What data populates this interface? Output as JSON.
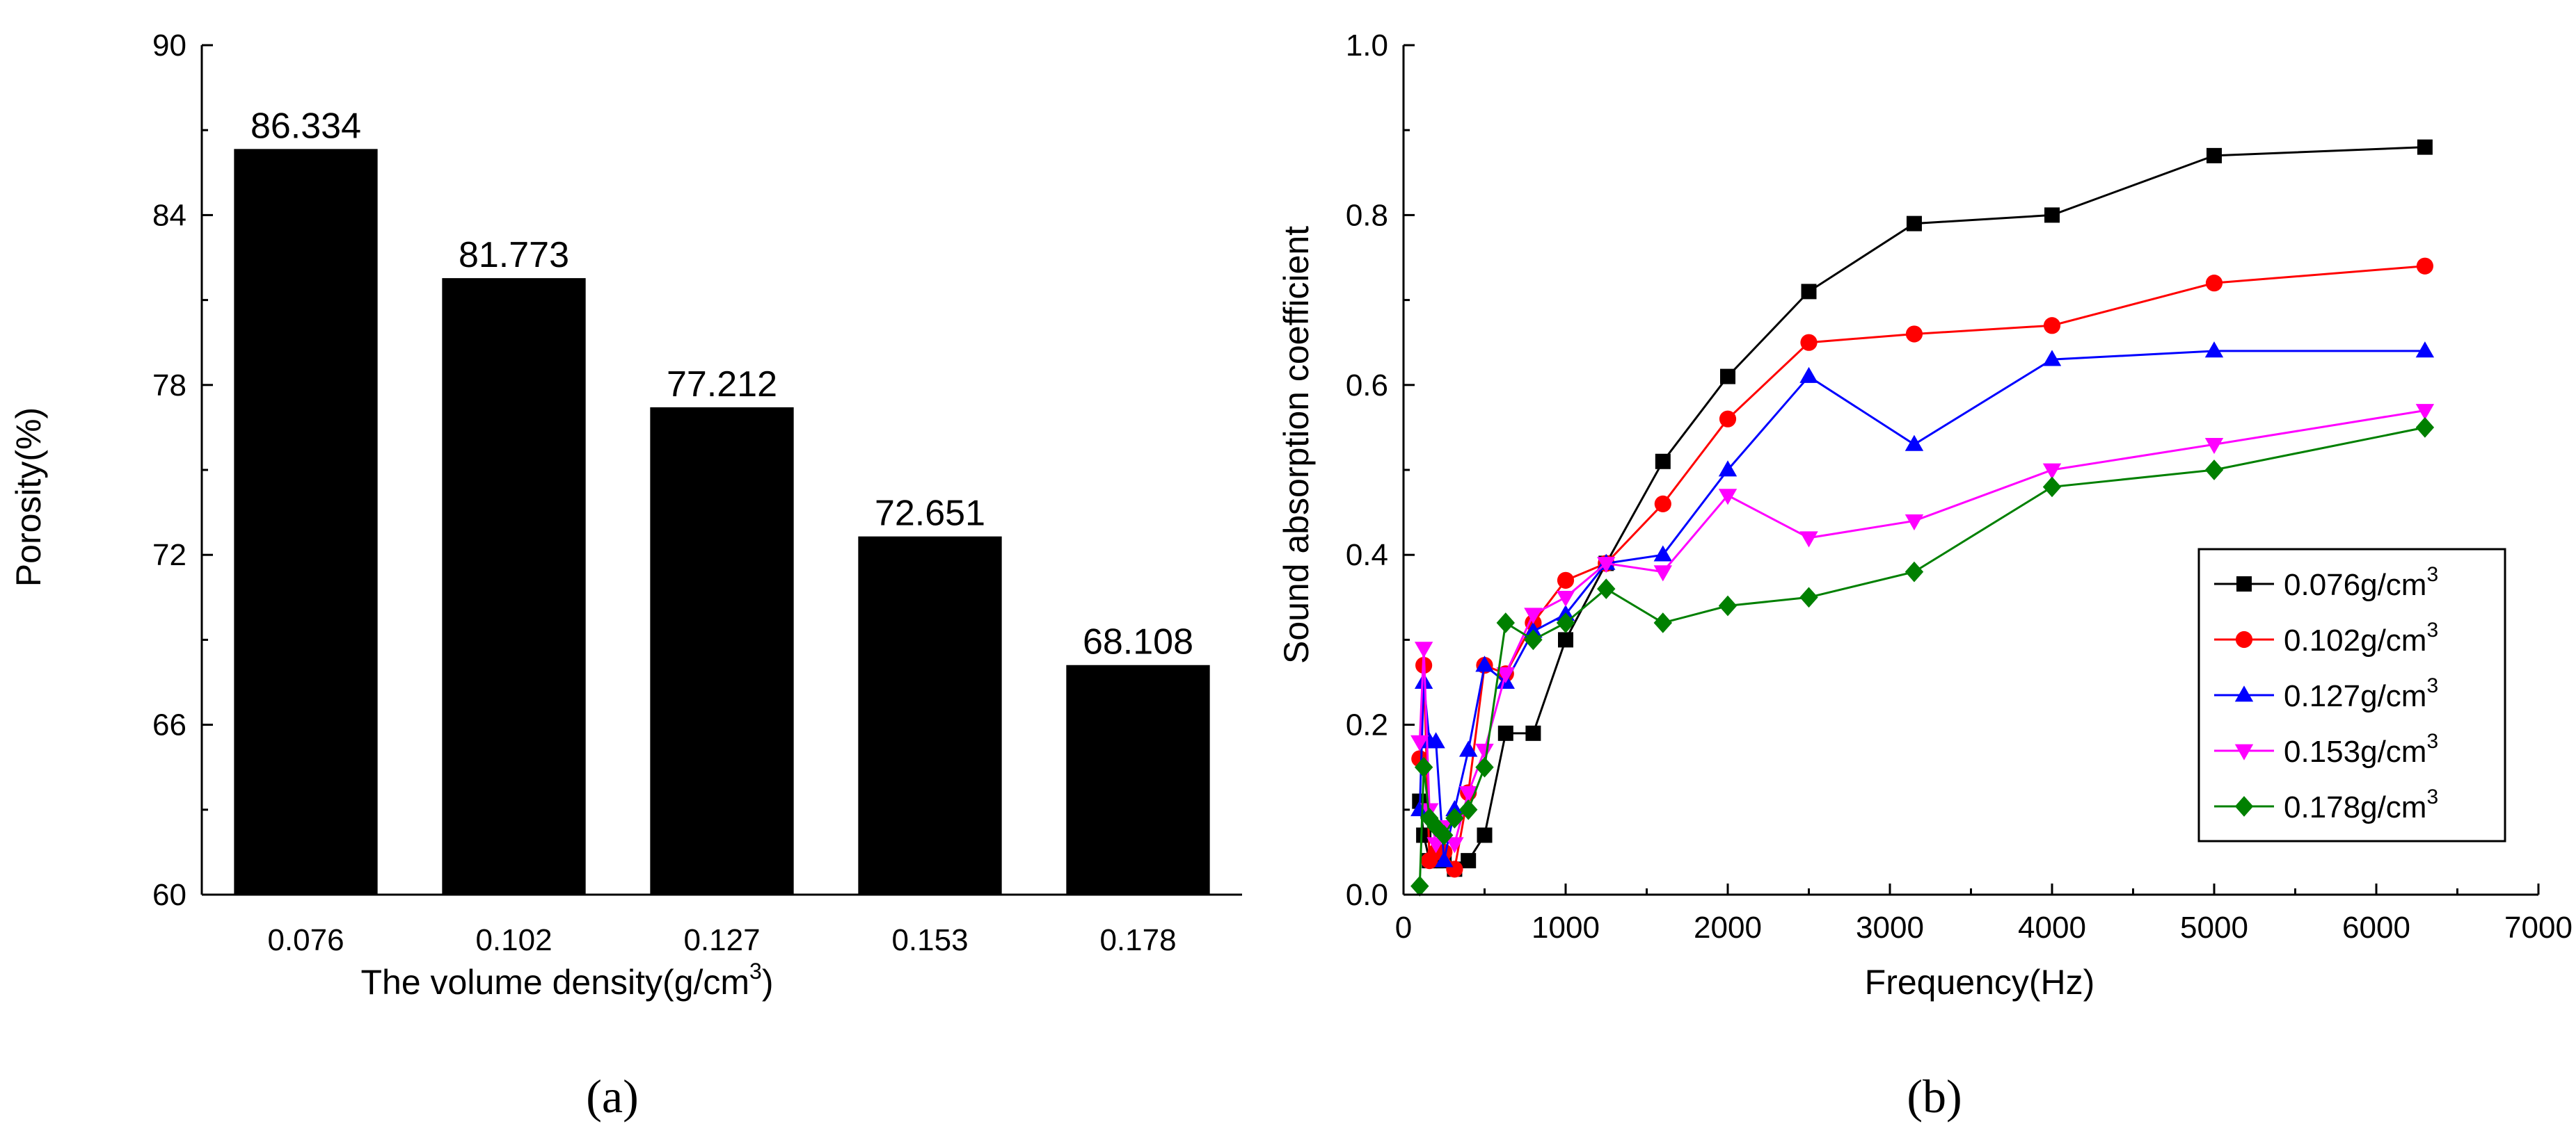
{
  "chart_data": [
    {
      "type": "bar",
      "panel_label": "(a)",
      "categories": [
        "0.076",
        "0.102",
        "0.127",
        "0.153",
        "0.178"
      ],
      "values": [
        86.334,
        81.773,
        77.212,
        72.651,
        68.108
      ],
      "data_labels": [
        "86.334",
        "81.773",
        "77.212",
        "72.651",
        "68.108"
      ],
      "xlabel": "The volume density(g/cm",
      "xlabel_sup": "3",
      "xlabel_end": ")",
      "ylabel": "Porosity(%)",
      "ylim": [
        60,
        90
      ],
      "yticks": [
        60,
        66,
        72,
        78,
        84,
        90
      ],
      "bar_color": "#000000"
    },
    {
      "type": "line",
      "panel_label": "(b)",
      "xlabel": "Frequency(Hz)",
      "ylabel": "Sound absorption coefficient",
      "xlim": [
        0,
        7000
      ],
      "ylim": [
        0.0,
        1.0
      ],
      "xticks": [
        0,
        1000,
        2000,
        3000,
        4000,
        5000,
        6000,
        7000
      ],
      "yticks": [
        0.0,
        0.2,
        0.4,
        0.6,
        0.8,
        1.0
      ],
      "x": [
        100,
        125,
        160,
        200,
        250,
        315,
        400,
        500,
        630,
        800,
        1000,
        1250,
        1600,
        2000,
        2500,
        3150,
        4000,
        5000,
        6300
      ],
      "legend_position": "center-right",
      "series": [
        {
          "name": "0.076g/cm",
          "sup": "3",
          "color": "#000000",
          "marker": "square",
          "values": [
            0.11,
            0.07,
            0.04,
            0.04,
            0.04,
            0.03,
            0.04,
            0.07,
            0.19,
            0.19,
            0.3,
            0.39,
            0.51,
            0.61,
            0.71,
            0.79,
            0.8,
            0.87,
            0.88
          ]
        },
        {
          "name": "0.102g/cm",
          "sup": "3",
          "color": "#ff0000",
          "marker": "circle",
          "values": [
            0.16,
            0.27,
            0.04,
            0.05,
            0.05,
            0.03,
            0.12,
            0.27,
            0.26,
            0.32,
            0.37,
            0.39,
            0.46,
            0.56,
            0.65,
            0.66,
            0.67,
            0.72,
            0.74
          ]
        },
        {
          "name": "0.127g/cm",
          "sup": "3",
          "color": "#0000ff",
          "marker": "triangle-up",
          "values": [
            0.1,
            0.25,
            0.18,
            0.18,
            0.04,
            0.1,
            0.17,
            0.27,
            0.25,
            0.31,
            0.33,
            0.39,
            0.4,
            0.5,
            0.61,
            0.53,
            0.63,
            0.64,
            0.64
          ]
        },
        {
          "name": "0.153g/cm",
          "sup": "3",
          "color": "#ff00ff",
          "marker": "triangle-down",
          "values": [
            0.18,
            0.29,
            0.1,
            0.06,
            0.08,
            0.06,
            0.12,
            0.17,
            0.26,
            0.33,
            0.35,
            0.39,
            0.38,
            0.47,
            0.42,
            0.44,
            0.5,
            0.53,
            0.57
          ]
        },
        {
          "name": "0.178g/cm",
          "sup": "3",
          "color": "#008000",
          "marker": "diamond",
          "values": [
            0.01,
            0.15,
            0.09,
            0.08,
            0.07,
            0.09,
            0.1,
            0.15,
            0.32,
            0.3,
            0.32,
            0.36,
            0.32,
            0.34,
            0.35,
            0.38,
            0.48,
            0.5,
            0.55
          ]
        }
      ]
    }
  ]
}
